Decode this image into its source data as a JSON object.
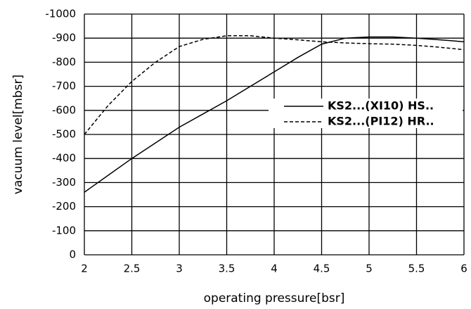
{
  "chart_data": {
    "type": "line",
    "xlabel": "operating pressure[bsr]",
    "ylabel": "vacuum level[mbsr]",
    "x": [
      2,
      2.25,
      2.5,
      2.75,
      3,
      3.25,
      3.5,
      3.75,
      4,
      4.25,
      4.5,
      4.75,
      5,
      5.25,
      5.5,
      5.75,
      6
    ],
    "series": [
      {
        "name": "KS2...(XI10) HS..",
        "color": "#000000",
        "line_style": "solid",
        "values": [
          -260,
          -330,
          -400,
          -465,
          -530,
          -585,
          -640,
          -700,
          -760,
          -820,
          -875,
          -900,
          -905,
          -905,
          -900,
          -893,
          -885
        ]
      },
      {
        "name": "KS2...(PI12) HR..",
        "color": "#000000",
        "line_style": "dashed",
        "values": [
          -500,
          -620,
          -720,
          -800,
          -865,
          -895,
          -910,
          -910,
          -900,
          -893,
          -885,
          -880,
          -877,
          -875,
          -870,
          -862,
          -852
        ]
      }
    ],
    "xlim": [
      2,
      6
    ],
    "xticks": [
      2,
      2.5,
      3,
      3.5,
      4,
      4.5,
      5,
      5.5,
      6
    ],
    "ylim": [
      0,
      -1000
    ],
    "yticks": [
      0,
      -100,
      -200,
      -300,
      -400,
      -500,
      -600,
      -700,
      -800,
      -900,
      -1000
    ],
    "grid": true,
    "legend": "upper-right"
  }
}
